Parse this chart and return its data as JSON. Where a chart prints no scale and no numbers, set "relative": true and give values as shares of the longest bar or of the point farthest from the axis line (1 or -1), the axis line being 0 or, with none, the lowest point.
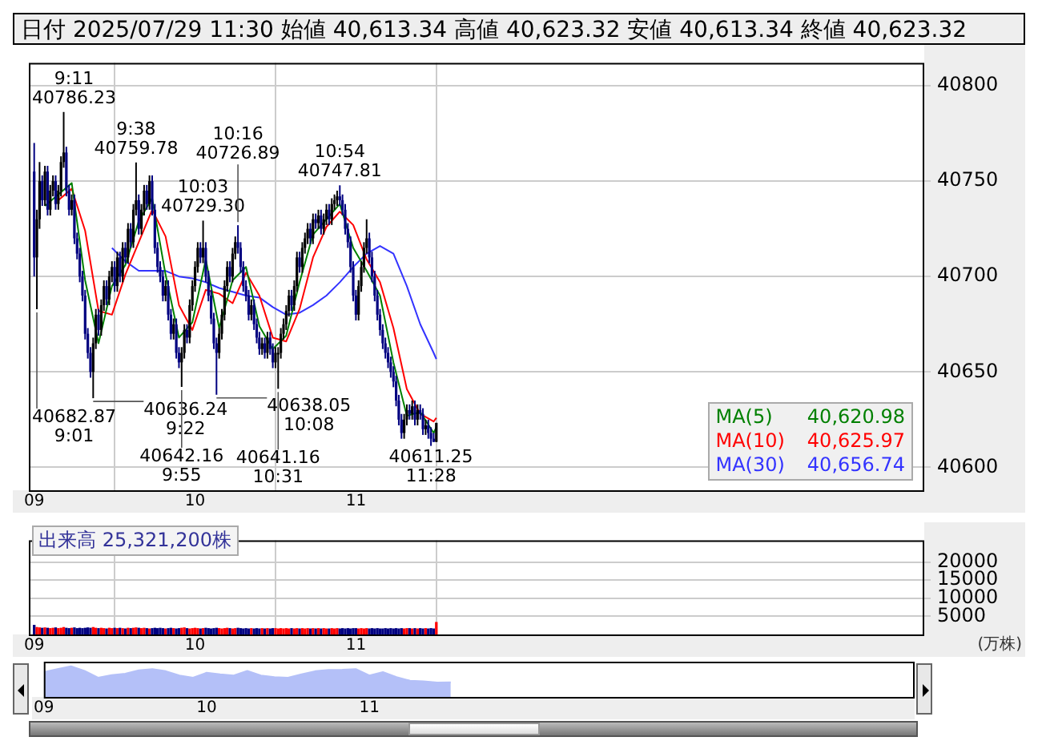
{
  "chart_data": [
    {
      "type": "candlestick",
      "title": "日付 2025/07/29 11:30 始値 40,613.34 高値 40,623.32 安値 40,613.34 終値 40,623.32",
      "x": [
        "2025-07-29T09:00",
        "2025-07-29T09:01",
        "2025-07-29T09:02",
        "2025-07-29T09:03",
        "2025-07-29T09:04",
        "2025-07-29T09:05",
        "2025-07-29T09:06",
        "2025-07-29T09:07",
        "2025-07-29T09:08",
        "2025-07-29T09:09",
        "2025-07-29T09:10",
        "2025-07-29T09:11",
        "2025-07-29T09:12",
        "2025-07-29T09:13",
        "2025-07-29T09:14",
        "2025-07-29T09:15",
        "2025-07-29T09:16",
        "2025-07-29T09:17",
        "2025-07-29T09:18",
        "2025-07-29T09:19",
        "2025-07-29T09:20",
        "2025-07-29T09:21",
        "2025-07-29T09:22",
        "2025-07-29T09:23",
        "2025-07-29T09:24",
        "2025-07-29T09:25",
        "2025-07-29T09:26",
        "2025-07-29T09:27",
        "2025-07-29T09:28",
        "2025-07-29T09:29",
        "2025-07-29T09:30",
        "2025-07-29T09:31",
        "2025-07-29T09:32",
        "2025-07-29T09:33",
        "2025-07-29T09:34",
        "2025-07-29T09:35",
        "2025-07-29T09:36",
        "2025-07-29T09:37",
        "2025-07-29T09:38",
        "2025-07-29T09:39",
        "2025-07-29T09:40",
        "2025-07-29T09:41",
        "2025-07-29T09:42",
        "2025-07-29T09:43",
        "2025-07-29T09:44",
        "2025-07-29T09:45",
        "2025-07-29T09:46",
        "2025-07-29T09:47",
        "2025-07-29T09:48",
        "2025-07-29T09:49",
        "2025-07-29T09:50",
        "2025-07-29T09:51",
        "2025-07-29T09:52",
        "2025-07-29T09:53",
        "2025-07-29T09:54",
        "2025-07-29T09:55",
        "2025-07-29T09:56",
        "2025-07-29T09:57",
        "2025-07-29T09:58",
        "2025-07-29T09:59",
        "2025-07-29T10:00",
        "2025-07-29T10:01",
        "2025-07-29T10:02",
        "2025-07-29T10:03",
        "2025-07-29T10:04",
        "2025-07-29T10:05",
        "2025-07-29T10:06",
        "2025-07-29T10:07",
        "2025-07-29T10:08",
        "2025-07-29T10:09",
        "2025-07-29T10:10",
        "2025-07-29T10:11",
        "2025-07-29T10:12",
        "2025-07-29T10:13",
        "2025-07-29T10:14",
        "2025-07-29T10:15",
        "2025-07-29T10:16",
        "2025-07-29T10:17",
        "2025-07-29T10:18",
        "2025-07-29T10:19",
        "2025-07-29T10:20",
        "2025-07-29T10:21",
        "2025-07-29T10:22",
        "2025-07-29T10:23",
        "2025-07-29T10:24",
        "2025-07-29T10:25",
        "2025-07-29T10:26",
        "2025-07-29T10:27",
        "2025-07-29T10:28",
        "2025-07-29T10:29",
        "2025-07-29T10:30",
        "2025-07-29T10:31",
        "2025-07-29T10:32",
        "2025-07-29T10:33",
        "2025-07-29T10:34",
        "2025-07-29T10:35",
        "2025-07-29T10:36",
        "2025-07-29T10:37",
        "2025-07-29T10:38",
        "2025-07-29T10:39",
        "2025-07-29T10:40",
        "2025-07-29T10:41",
        "2025-07-29T10:42",
        "2025-07-29T10:43",
        "2025-07-29T10:44",
        "2025-07-29T10:45",
        "2025-07-29T10:46",
        "2025-07-29T10:47",
        "2025-07-29T10:48",
        "2025-07-29T10:49",
        "2025-07-29T10:50",
        "2025-07-29T10:51",
        "2025-07-29T10:52",
        "2025-07-29T10:53",
        "2025-07-29T10:54",
        "2025-07-29T10:55",
        "2025-07-29T10:56",
        "2025-07-29T10:57",
        "2025-07-29T10:58",
        "2025-07-29T10:59",
        "2025-07-29T11:00",
        "2025-07-29T11:01",
        "2025-07-29T11:02",
        "2025-07-29T11:03",
        "2025-07-29T11:04",
        "2025-07-29T11:05",
        "2025-07-29T11:06",
        "2025-07-29T11:07",
        "2025-07-29T11:08",
        "2025-07-29T11:09",
        "2025-07-29T11:10",
        "2025-07-29T11:11",
        "2025-07-29T11:12",
        "2025-07-29T11:13",
        "2025-07-29T11:14",
        "2025-07-29T11:15",
        "2025-07-29T11:16",
        "2025-07-29T11:17",
        "2025-07-29T11:18",
        "2025-07-29T11:19",
        "2025-07-29T11:20",
        "2025-07-29T11:21",
        "2025-07-29T11:22",
        "2025-07-29T11:23",
        "2025-07-29T11:24",
        "2025-07-29T11:25",
        "2025-07-29T11:26",
        "2025-07-29T11:27",
        "2025-07-29T11:28",
        "2025-07-29T11:29",
        "2025-07-29T11:30"
      ],
      "ohlc": [
        [
          40755,
          40770,
          40700,
          40710
        ],
        [
          40710,
          40735,
          40682.87,
          40730
        ],
        [
          40730,
          40760,
          40725,
          40750
        ],
        [
          40750,
          40753,
          40737,
          40740
        ],
        [
          40740,
          40758,
          40737,
          40755
        ],
        [
          40755,
          40758,
          40732,
          40735
        ],
        [
          40735,
          40748,
          40732,
          40745
        ],
        [
          40745,
          40753,
          40742,
          40750
        ],
        [
          40750,
          40753,
          40735,
          40738
        ],
        [
          40738,
          40748,
          40735,
          40745
        ],
        [
          40745,
          40763,
          40742,
          40760
        ],
        [
          40760,
          40786.23,
          40757,
          40765
        ],
        [
          40765,
          40768,
          40742,
          40745
        ],
        [
          40745,
          40748,
          40732,
          40735
        ],
        [
          40735,
          40743,
          40732,
          40740
        ],
        [
          40740,
          40743,
          40717,
          40720
        ],
        [
          40720,
          40723,
          40709,
          40712
        ],
        [
          40712,
          40715,
          40697,
          40700
        ],
        [
          40700,
          40703,
          40687,
          40690
        ],
        [
          40690,
          40693,
          40667,
          40670
        ],
        [
          40670,
          40673,
          40657,
          40660
        ],
        [
          40660,
          40663,
          40647,
          40650
        ],
        [
          40650,
          40668,
          40636.24,
          40665
        ],
        [
          40665,
          40683,
          40662,
          40680
        ],
        [
          40680,
          40683,
          40669,
          40672
        ],
        [
          40672,
          40688,
          40669,
          40685
        ],
        [
          40685,
          40698,
          40682,
          40695
        ],
        [
          40695,
          40698,
          40685,
          40688
        ],
        [
          40688,
          40703,
          40685,
          40700
        ],
        [
          40700,
          40708,
          40697,
          40705
        ],
        [
          40705,
          40708,
          40692,
          40695
        ],
        [
          40695,
          40713,
          40692,
          40710
        ],
        [
          40710,
          40713,
          40697,
          40700
        ],
        [
          40700,
          40718,
          40697,
          40715
        ],
        [
          40715,
          40718,
          40707,
          40710
        ],
        [
          40710,
          40728,
          40707,
          40725
        ],
        [
          40725,
          40728,
          40715,
          40718
        ],
        [
          40718,
          40738,
          40715,
          40735
        ],
        [
          40735,
          40759.78,
          40732,
          40740
        ],
        [
          40740,
          40743,
          40722,
          40725
        ],
        [
          40725,
          40738,
          40722,
          40735
        ],
        [
          40735,
          40748,
          40732,
          40745
        ],
        [
          40745,
          40748,
          40735,
          40738
        ],
        [
          40738,
          40753,
          40735,
          40750
        ],
        [
          40750,
          40753,
          40732,
          40735
        ],
        [
          40735,
          40738,
          40712,
          40715
        ],
        [
          40715,
          40718,
          40702,
          40705
        ],
        [
          40705,
          40708,
          40697,
          40700
        ],
        [
          40700,
          40703,
          40687,
          40690
        ],
        [
          40690,
          40698,
          40687,
          40695
        ],
        [
          40695,
          40698,
          40677,
          40680
        ],
        [
          40680,
          40683,
          40667,
          40670
        ],
        [
          40670,
          40678,
          40667,
          40675
        ],
        [
          40675,
          40678,
          40657,
          40660
        ],
        [
          40660,
          40663,
          40652,
          40655
        ],
        [
          40655,
          40663,
          40642.16,
          40660
        ],
        [
          40660,
          40675,
          40657,
          40672
        ],
        [
          40672,
          40675,
          40665,
          40668
        ],
        [
          40668,
          40688,
          40665,
          40685
        ],
        [
          40685,
          40698,
          40682,
          40695
        ],
        [
          40695,
          40708,
          40692,
          40705
        ],
        [
          40705,
          40718,
          40702,
          40715
        ],
        [
          40715,
          40718,
          40707,
          40710
        ],
        [
          40710,
          40729.3,
          40707,
          40715
        ],
        [
          40715,
          40718,
          40697,
          40700
        ],
        [
          40700,
          40703,
          40687,
          40690
        ],
        [
          40690,
          40693,
          40675,
          40678
        ],
        [
          40678,
          40681,
          40662,
          40665
        ],
        [
          40665,
          40668,
          40638.05,
          40660
        ],
        [
          40660,
          40673,
          40657,
          40670
        ],
        [
          40670,
          40683,
          40667,
          40680
        ],
        [
          40680,
          40698,
          40677,
          40695
        ],
        [
          40695,
          40708,
          40692,
          40705
        ],
        [
          40705,
          40708,
          40697,
          40700
        ],
        [
          40700,
          40715,
          40697,
          40712
        ],
        [
          40712,
          40721,
          40709,
          40718
        ],
        [
          40718,
          40726.89,
          40712,
          40715
        ],
        [
          40715,
          40718,
          40702,
          40705
        ],
        [
          40705,
          40708,
          40692,
          40695
        ],
        [
          40695,
          40698,
          40687,
          40690
        ],
        [
          40690,
          40693,
          40677,
          40680
        ],
        [
          40680,
          40688,
          40677,
          40685
        ],
        [
          40685,
          40688,
          40672,
          40675
        ],
        [
          40675,
          40678,
          40665,
          40668
        ],
        [
          40668,
          40671,
          40659,
          40662
        ],
        [
          40662,
          40668,
          40659,
          40665
        ],
        [
          40665,
          40668,
          40657,
          40660
        ],
        [
          40660,
          40671,
          40657,
          40668
        ],
        [
          40668,
          40671,
          40659,
          40662
        ],
        [
          40662,
          40665,
          40652,
          40655
        ],
        [
          40655,
          40663,
          40652,
          40660
        ],
        [
          40660,
          40663,
          40641.16,
          40660
        ],
        [
          40660,
          40673,
          40657,
          40670
        ],
        [
          40670,
          40678,
          40667,
          40675
        ],
        [
          40675,
          40685,
          40672,
          40682
        ],
        [
          40682,
          40693,
          40679,
          40690
        ],
        [
          40690,
          40693,
          40682,
          40685
        ],
        [
          40685,
          40698,
          40682,
          40695
        ],
        [
          40695,
          40713,
          40692,
          40710
        ],
        [
          40710,
          40713,
          40702,
          40705
        ],
        [
          40705,
          40718,
          40702,
          40715
        ],
        [
          40715,
          40723,
          40712,
          40720
        ],
        [
          40720,
          40728,
          40717,
          40725
        ],
        [
          40725,
          40728,
          40717,
          40720
        ],
        [
          40720,
          40733,
          40717,
          40730
        ],
        [
          40730,
          40733,
          40725,
          40728
        ],
        [
          40728,
          40735,
          40725,
          40732
        ],
        [
          40732,
          40735,
          40722,
          40725
        ],
        [
          40725,
          40733,
          40722,
          40730
        ],
        [
          40730,
          40738,
          40727,
          40735
        ],
        [
          40735,
          40738,
          40727,
          40730
        ],
        [
          40730,
          40741,
          40727,
          40738
        ],
        [
          40738,
          40743,
          40735,
          40740
        ],
        [
          40740,
          40745,
          40737,
          40742
        ],
        [
          40742,
          40747.81,
          40737,
          40740
        ],
        [
          40740,
          40743,
          40732,
          40735
        ],
        [
          40735,
          40738,
          40722,
          40725
        ],
        [
          40725,
          40728,
          40715,
          40718
        ],
        [
          40718,
          40721,
          40702,
          40705
        ],
        [
          40705,
          40708,
          40687,
          40690
        ],
        [
          40690,
          40693,
          40677,
          40680
        ],
        [
          40680,
          40698,
          40677,
          40695
        ],
        [
          40695,
          40708,
          40692,
          40705
        ],
        [
          40705,
          40718,
          40702,
          40715
        ],
        [
          40715,
          40730,
          40712,
          40720
        ],
        [
          40720,
          40723,
          40707,
          40710
        ],
        [
          40710,
          40713,
          40697,
          40700
        ],
        [
          40700,
          40703,
          40687,
          40690
        ],
        [
          40690,
          40693,
          40677,
          40680
        ],
        [
          40680,
          40683,
          40669,
          40672
        ],
        [
          40672,
          40675,
          40662,
          40665
        ],
        [
          40665,
          40668,
          40657,
          40660
        ],
        [
          40660,
          40663,
          40652,
          40655
        ],
        [
          40655,
          40658,
          40647,
          40650
        ],
        [
          40650,
          40653,
          40642,
          40645
        ],
        [
          40645,
          40648,
          40632,
          40635
        ],
        [
          40635,
          40638,
          40622,
          40625
        ],
        [
          40625,
          40628,
          40615,
          40618
        ],
        [
          40618,
          40628,
          40615,
          40625
        ],
        [
          40625,
          40633,
          40622,
          40630
        ],
        [
          40630,
          40633,
          40625,
          40628
        ],
        [
          40628,
          40635,
          40625,
          40632
        ],
        [
          40632,
          40635,
          40622,
          40625
        ],
        [
          40625,
          40633,
          40622,
          40630
        ],
        [
          40630,
          40633,
          40625,
          40628
        ],
        [
          40628,
          40631,
          40617,
          40620
        ],
        [
          40620,
          40625,
          40617,
          40622
        ],
        [
          40622,
          40625,
          40615,
          40618
        ],
        [
          40618,
          40621,
          40611.25,
          40615
        ],
        [
          40615,
          40618,
          40613.34,
          40613.34
        ],
        [
          40613.34,
          40623.32,
          40613.34,
          40623.32
        ]
      ],
      "colors": [
        "#000080",
        "#000000",
        "#000000",
        "#000080",
        "#000000",
        "#000080",
        "#000000",
        "#000000",
        "#000080",
        "#000000",
        "#000000",
        "#000000",
        "#000080",
        "#000080",
        "#000000",
        "#000080",
        "#000080",
        "#000080",
        "#000080",
        "#000080",
        "#000080",
        "#000080",
        "#000000",
        "#000000",
        "#000080",
        "#000000",
        "#000000",
        "#000080",
        "#000000",
        "#000000",
        "#000080",
        "#000000",
        "#000080",
        "#000000",
        "#000080",
        "#000000",
        "#000080",
        "#000000",
        "#000000",
        "#000080",
        "#000000",
        "#000000",
        "#000080",
        "#000000",
        "#000080",
        "#000080",
        "#000080",
        "#000080",
        "#000080",
        "#000000",
        "#000080",
        "#000080",
        "#000000",
        "#000080",
        "#000080",
        "#000000",
        "#000000",
        "#000080",
        "#000000",
        "#000000",
        "#000000",
        "#000000",
        "#000080",
        "#000000",
        "#000080",
        "#000080",
        "#000080",
        "#000080",
        "#000080",
        "#000000",
        "#000000",
        "#000000",
        "#000000",
        "#000080",
        "#000000",
        "#000000",
        "#000080",
        "#000080",
        "#000080",
        "#000080",
        "#000080",
        "#000000",
        "#000080",
        "#000080",
        "#000080",
        "#000000",
        "#000080",
        "#000000",
        "#000080",
        "#000080",
        "#000000",
        "#000000",
        "#000000",
        "#000000",
        "#000000",
        "#000000",
        "#000080",
        "#000000",
        "#000000",
        "#000080",
        "#000000",
        "#000000",
        "#000000",
        "#000080",
        "#000000",
        "#000080",
        "#000000",
        "#000080",
        "#000000",
        "#000000",
        "#000080",
        "#000000",
        "#000000",
        "#000000",
        "#000080",
        "#000080",
        "#000080",
        "#000080",
        "#000080",
        "#000080",
        "#000080",
        "#000000",
        "#000000",
        "#000000",
        "#000000",
        "#000080",
        "#000080",
        "#000080",
        "#000080",
        "#000080",
        "#000080",
        "#000080",
        "#000080",
        "#000080",
        "#000080",
        "#000080",
        "#000080",
        "#000080",
        "#000000",
        "#000000",
        "#000080",
        "#000000",
        "#000080",
        "#000000",
        "#000080",
        "#000080",
        "#000000",
        "#000080",
        "#000080",
        "#000080",
        "#000000"
      ],
      "series": [
        {
          "type": "line",
          "name": "MA(5)",
          "color": "#008000",
          "x": [
            "2025-07-29T09:04",
            "2025-07-29T09:09",
            "2025-07-29T09:14",
            "2025-07-29T09:19",
            "2025-07-29T09:24",
            "2025-07-29T09:29",
            "2025-07-29T09:34",
            "2025-07-29T09:39",
            "2025-07-29T09:44",
            "2025-07-29T09:49",
            "2025-07-29T09:54",
            "2025-07-29T09:59",
            "2025-07-29T10:04",
            "2025-07-29T10:09",
            "2025-07-29T10:14",
            "2025-07-29T10:19",
            "2025-07-29T10:24",
            "2025-07-29T10:29",
            "2025-07-29T10:34",
            "2025-07-29T10:39",
            "2025-07-29T10:44",
            "2025-07-29T10:49",
            "2025-07-29T10:54",
            "2025-07-29T10:59",
            "2025-07-29T11:04",
            "2025-07-29T11:09",
            "2025-07-29T11:14",
            "2025-07-29T11:19",
            "2025-07-29T11:24",
            "2025-07-29T11:29",
            "2025-07-29T11:30"
          ],
          "values": [
            40737,
            40743,
            40749,
            40698,
            40665,
            40695,
            40706,
            40729,
            40741,
            40701,
            40668,
            40676,
            40709,
            40673,
            40698,
            40705,
            40674,
            40662,
            40669,
            40697,
            40722,
            40730,
            40738,
            40715,
            40703,
            40690,
            40655,
            40627,
            40629,
            40618,
            40620.98
          ]
        },
        {
          "type": "line",
          "name": "MA(10)",
          "color": "#ff0000",
          "x": [
            "2025-07-29T09:09",
            "2025-07-29T09:14",
            "2025-07-29T09:19",
            "2025-07-29T09:24",
            "2025-07-29T09:29",
            "2025-07-29T09:34",
            "2025-07-29T09:39",
            "2025-07-29T09:44",
            "2025-07-29T09:49",
            "2025-07-29T09:54",
            "2025-07-29T09:59",
            "2025-07-29T10:04",
            "2025-07-29T10:09",
            "2025-07-29T10:14",
            "2025-07-29T10:19",
            "2025-07-29T10:24",
            "2025-07-29T10:29",
            "2025-07-29T10:34",
            "2025-07-29T10:39",
            "2025-07-29T10:44",
            "2025-07-29T10:49",
            "2025-07-29T10:54",
            "2025-07-29T10:59",
            "2025-07-29T11:04",
            "2025-07-29T11:09",
            "2025-07-29T11:14",
            "2025-07-29T11:19",
            "2025-07-29T11:24",
            "2025-07-29T11:29",
            "2025-07-29T11:30"
          ],
          "values": [
            40740,
            40746,
            40724,
            40682,
            40680,
            40701,
            40718,
            40735,
            40721,
            40685,
            40672,
            40693,
            40691,
            40686,
            40702,
            40690,
            40668,
            40666,
            40683,
            40710,
            40726,
            40734,
            40727,
            40709,
            40697,
            40673,
            40641,
            40628,
            40624,
            40625.97
          ]
        },
        {
          "type": "line",
          "name": "MA(30)",
          "color": "#3333ff",
          "x": [
            "2025-07-29T09:29",
            "2025-07-29T09:34",
            "2025-07-29T09:39",
            "2025-07-29T09:44",
            "2025-07-29T09:49",
            "2025-07-29T09:54",
            "2025-07-29T09:59",
            "2025-07-29T10:04",
            "2025-07-29T10:09",
            "2025-07-29T10:14",
            "2025-07-29T10:19",
            "2025-07-29T10:24",
            "2025-07-29T10:29",
            "2025-07-29T10:34",
            "2025-07-29T10:39",
            "2025-07-29T10:44",
            "2025-07-29T10:49",
            "2025-07-29T10:54",
            "2025-07-29T10:59",
            "2025-07-29T11:04",
            "2025-07-29T11:09",
            "2025-07-29T11:14",
            "2025-07-29T11:19",
            "2025-07-29T11:24",
            "2025-07-29T11:29",
            "2025-07-29T11:30"
          ],
          "values": [
            40715,
            40708,
            40703,
            40703,
            40703,
            40700,
            40699,
            40697,
            40694,
            40692,
            40690,
            40689,
            40684,
            40680,
            40681,
            40685,
            40690,
            40697,
            40705,
            40712,
            40716,
            40712,
            40695,
            40675,
            40660,
            40656.74
          ]
        }
      ],
      "xlim": [
        "2025-07-29T08:58",
        "2025-07-29T14:32"
      ],
      "xticks": [
        {
          "value": "2025-07-29T09:00",
          "label": "09"
        },
        {
          "value": "2025-07-29T10:00",
          "label": "10"
        },
        {
          "value": "2025-07-29T11:00",
          "label": "11"
        }
      ],
      "ylim": [
        40588,
        40812
      ],
      "yticks": [
        40600,
        40650,
        40700,
        40750,
        40800
      ],
      "grid": true,
      "legend": "bottom right",
      "annotations": [
        {
          "text": "9:11\n40786.23",
          "x": "2025-07-29T09:11",
          "y": 40786.23
        },
        {
          "text": "9:38\n40759.78",
          "x": "2025-07-29T09:38",
          "y": 40759.78
        },
        {
          "text": "10:03\n40729.30",
          "x": "2025-07-29T10:03",
          "y": 40729.3
        },
        {
          "text": "10:16\n40726.89",
          "x": "2025-07-29T10:16",
          "y": 40726.89
        },
        {
          "text": "10:54\n40747.81",
          "x": "2025-07-29T10:54",
          "y": 40747.81
        },
        {
          "text": "40682.87\n9:01",
          "x": "2025-07-29T09:01",
          "y": 40682.87
        },
        {
          "text": "40636.24\n9:22",
          "x": "2025-07-29T09:22",
          "y": 40636.24
        },
        {
          "text": "40642.16\n9:55",
          "x": "2025-07-29T09:55",
          "y": 40642.16
        },
        {
          "text": "40638.05\n10:08",
          "x": "2025-07-29T10:08",
          "y": 40638.05
        },
        {
          "text": "40641.16\n10:31",
          "x": "2025-07-29T10:31",
          "y": 40641.16
        },
        {
          "text": "40611.25\n11:28",
          "x": "2025-07-29T11:28",
          "y": 40611.25
        },
        "40,620.98",
        "40,625.97",
        "40,656.74"
      ]
    },
    {
      "type": "bar",
      "title": "出来高 25,321,200株",
      "ylabel": "(万株)",
      "x": [
        "2025-07-29T09:00",
        "2025-07-29T09:01",
        "2025-07-29T09:02",
        "2025-07-29T09:03",
        "2025-07-29T09:04",
        "2025-07-29T09:05",
        "2025-07-29T09:06",
        "2025-07-29T09:07",
        "2025-07-29T09:08",
        "2025-07-29T09:09",
        "2025-07-29T09:10",
        "2025-07-29T09:11",
        "2025-07-29T09:12",
        "2025-07-29T09:13",
        "2025-07-29T09:14",
        "2025-07-29T09:15",
        "2025-07-29T09:16",
        "2025-07-29T09:17",
        "2025-07-29T09:18",
        "2025-07-29T09:19",
        "2025-07-29T09:20",
        "2025-07-29T09:21",
        "2025-07-29T09:22",
        "2025-07-29T09:23",
        "2025-07-29T09:24",
        "2025-07-29T09:25",
        "2025-07-29T09:26",
        "2025-07-29T09:27",
        "2025-07-29T09:28",
        "2025-07-29T09:29",
        "2025-07-29T09:30",
        "2025-07-29T09:31",
        "2025-07-29T09:32",
        "2025-07-29T09:33",
        "2025-07-29T09:34",
        "2025-07-29T09:35",
        "2025-07-29T09:36",
        "2025-07-29T09:37",
        "2025-07-29T09:38",
        "2025-07-29T09:39",
        "2025-07-29T09:40",
        "2025-07-29T09:41",
        "2025-07-29T09:42",
        "2025-07-29T09:43",
        "2025-07-29T09:44",
        "2025-07-29T09:45",
        "2025-07-29T09:46",
        "2025-07-29T09:47",
        "2025-07-29T09:48",
        "2025-07-29T09:49",
        "2025-07-29T09:50",
        "2025-07-29T09:51",
        "2025-07-29T09:52",
        "2025-07-29T09:53",
        "2025-07-29T09:54",
        "2025-07-29T09:55",
        "2025-07-29T09:56",
        "2025-07-29T09:57",
        "2025-07-29T09:58",
        "2025-07-29T09:59",
        "2025-07-29T10:00",
        "2025-07-29T10:01",
        "2025-07-29T10:02",
        "2025-07-29T10:03",
        "2025-07-29T10:04",
        "2025-07-29T10:05",
        "2025-07-29T10:06",
        "2025-07-29T10:07",
        "2025-07-29T10:08",
        "2025-07-29T10:09",
        "2025-07-29T10:10",
        "2025-07-29T10:11",
        "2025-07-29T10:12",
        "2025-07-29T10:13",
        "2025-07-29T10:14",
        "2025-07-29T10:15",
        "2025-07-29T10:16",
        "2025-07-29T10:17",
        "2025-07-29T10:18",
        "2025-07-29T10:19",
        "2025-07-29T10:20",
        "2025-07-29T10:21",
        "2025-07-29T10:22",
        "2025-07-29T10:23",
        "2025-07-29T10:24",
        "2025-07-29T10:25",
        "2025-07-29T10:26",
        "2025-07-29T10:27",
        "2025-07-29T10:28",
        "2025-07-29T10:29",
        "2025-07-29T10:30",
        "2025-07-29T10:31",
        "2025-07-29T10:32",
        "2025-07-29T10:33",
        "2025-07-29T10:34",
        "2025-07-29T10:35",
        "2025-07-29T10:36",
        "2025-07-29T10:37",
        "2025-07-29T10:38",
        "2025-07-29T10:39",
        "2025-07-29T10:40",
        "2025-07-29T10:41",
        "2025-07-29T10:42",
        "2025-07-29T10:43",
        "2025-07-29T10:44",
        "2025-07-29T10:45",
        "2025-07-29T10:46",
        "2025-07-29T10:47",
        "2025-07-29T10:48",
        "2025-07-29T10:49",
        "2025-07-29T10:50",
        "2025-07-29T10:51",
        "2025-07-29T10:52",
        "2025-07-29T10:53",
        "2025-07-29T10:54",
        "2025-07-29T10:55",
        "2025-07-29T10:56",
        "2025-07-29T10:57",
        "2025-07-29T10:58",
        "2025-07-29T10:59",
        "2025-07-29T11:00",
        "2025-07-29T11:01",
        "2025-07-29T11:02",
        "2025-07-29T11:03",
        "2025-07-29T11:04",
        "2025-07-29T11:05",
        "2025-07-29T11:06",
        "2025-07-29T11:07",
        "2025-07-29T11:08",
        "2025-07-29T11:09",
        "2025-07-29T11:10",
        "2025-07-29T11:11",
        "2025-07-29T11:12",
        "2025-07-29T11:13",
        "2025-07-29T11:14",
        "2025-07-29T11:15",
        "2025-07-29T11:16",
        "2025-07-29T11:17",
        "2025-07-29T11:18",
        "2025-07-29T11:19",
        "2025-07-29T11:20",
        "2025-07-29T11:21",
        "2025-07-29T11:22",
        "2025-07-29T11:23",
        "2025-07-29T11:24",
        "2025-07-29T11:25",
        "2025-07-29T11:26",
        "2025-07-29T11:27",
        "2025-07-29T11:28",
        "2025-07-29T11:29",
        "2025-07-29T11:30"
      ],
      "values": [
        2500,
        1900,
        1800,
        1700,
        1800,
        1700,
        1600,
        1700,
        1800,
        1600,
        1700,
        1900,
        1700,
        1600,
        1700,
        1800,
        1600,
        1700,
        1600,
        1700,
        1800,
        1700,
        1900,
        1700,
        1600,
        1700,
        1600,
        1500,
        1700,
        1600,
        1700,
        1600,
        1700,
        1600,
        1500,
        1700,
        1600,
        1700,
        1800,
        1700,
        1600,
        1700,
        1600,
        1500,
        1600,
        1700,
        1600,
        1700,
        1600,
        1500,
        1600,
        1700,
        1600,
        1500,
        1600,
        1700,
        1800,
        1600,
        1500,
        1600,
        1700,
        1600,
        1500,
        1600,
        1700,
        1600,
        1500,
        1600,
        1700,
        1600,
        1500,
        1600,
        1700,
        1600,
        1500,
        1600,
        1700,
        1600,
        1500,
        1600,
        1500,
        1600,
        1500,
        1600,
        1500,
        1600,
        1500,
        1600,
        1500,
        1600,
        1600,
        1500,
        1600,
        1500,
        1600,
        1500,
        1600,
        1500,
        1600,
        1500,
        1600,
        1500,
        1600,
        1500,
        1600,
        1500,
        1600,
        1500,
        1600,
        1500,
        1500,
        1600,
        1500,
        1600,
        1500,
        1600,
        1500,
        1600,
        1500,
        1600,
        1600,
        1500,
        1600,
        1500,
        1600,
        1500,
        1600,
        1500,
        1600,
        1500,
        1500,
        1600,
        1500,
        1600,
        1500,
        1600,
        1500,
        1600,
        1500,
        1600,
        1600,
        1500,
        1600,
        1500,
        1600,
        1500,
        1600,
        1500,
        1600,
        1500,
        3300
      ],
      "colors": [
        "#000080",
        "#ff0000",
        "#ff0000",
        "#000080",
        "#ff0000",
        "#000080",
        "#ff0000",
        "#ff0000",
        "#000080",
        "#ff0000",
        "#ff0000",
        "#ff0000",
        "#000080",
        "#000080",
        "#ff0000",
        "#000080",
        "#000080",
        "#000080",
        "#000080",
        "#000080",
        "#000080",
        "#000080",
        "#ff0000",
        "#ff0000",
        "#000080",
        "#ff0000",
        "#ff0000",
        "#000080",
        "#ff0000",
        "#ff0000",
        "#000080",
        "#ff0000",
        "#000080",
        "#ff0000",
        "#000080",
        "#ff0000",
        "#000080",
        "#ff0000",
        "#ff0000",
        "#000080",
        "#ff0000",
        "#ff0000",
        "#000080",
        "#ff0000",
        "#000080",
        "#000080",
        "#000080",
        "#000080",
        "#000080",
        "#ff0000",
        "#000080",
        "#000080",
        "#ff0000",
        "#000080",
        "#000080",
        "#ff0000",
        "#ff0000",
        "#000080",
        "#ff0000",
        "#ff0000",
        "#ff0000",
        "#ff0000",
        "#000080",
        "#ff0000",
        "#000080",
        "#000080",
        "#000080",
        "#000080",
        "#000080",
        "#ff0000",
        "#ff0000",
        "#ff0000",
        "#ff0000",
        "#000080",
        "#ff0000",
        "#ff0000",
        "#000080",
        "#000080",
        "#000080",
        "#000080",
        "#000080",
        "#ff0000",
        "#000080",
        "#000080",
        "#000080",
        "#ff0000",
        "#000080",
        "#ff0000",
        "#000080",
        "#000080",
        "#ff0000",
        "#ff0000",
        "#ff0000",
        "#ff0000",
        "#ff0000",
        "#ff0000",
        "#000080",
        "#ff0000",
        "#ff0000",
        "#000080",
        "#ff0000",
        "#ff0000",
        "#ff0000",
        "#000080",
        "#ff0000",
        "#000080",
        "#ff0000",
        "#000080",
        "#ff0000",
        "#ff0000",
        "#000080",
        "#ff0000",
        "#ff0000",
        "#ff0000",
        "#000080",
        "#000080",
        "#000080",
        "#000080",
        "#000080",
        "#000080",
        "#000080",
        "#ff0000",
        "#ff0000",
        "#ff0000",
        "#ff0000",
        "#000080",
        "#000080",
        "#000080",
        "#000080",
        "#000080",
        "#000080",
        "#000080",
        "#000080",
        "#000080",
        "#000080",
        "#000080",
        "#000080",
        "#000080",
        "#ff0000",
        "#ff0000",
        "#000080",
        "#ff0000",
        "#000080",
        "#ff0000",
        "#000080",
        "#000080",
        "#ff0000",
        "#000080",
        "#000080",
        "#000080",
        "#ff0000"
      ],
      "xlim": [
        "2025-07-29T08:58",
        "2025-07-29T14:32"
      ],
      "xticks": [
        {
          "value": "2025-07-29T09:00",
          "label": "09"
        },
        {
          "value": "2025-07-29T10:00",
          "label": "10"
        },
        {
          "value": "2025-07-29T11:00",
          "label": "11"
        }
      ],
      "ylim": [
        0,
        26000
      ],
      "yticks": [
        5000,
        10000,
        15000,
        20000
      ],
      "grid": true
    },
    {
      "type": "area",
      "relative": true,
      "color": "#b4c0f8",
      "x": [
        "2025-07-29T09:00",
        "2025-07-29T09:05",
        "2025-07-29T09:10",
        "2025-07-29T09:15",
        "2025-07-29T09:20",
        "2025-07-29T09:25",
        "2025-07-29T09:30",
        "2025-07-29T09:35",
        "2025-07-29T09:40",
        "2025-07-29T09:45",
        "2025-07-29T09:50",
        "2025-07-29T09:55",
        "2025-07-29T10:00",
        "2025-07-29T10:05",
        "2025-07-29T10:10",
        "2025-07-29T10:15",
        "2025-07-29T10:20",
        "2025-07-29T10:25",
        "2025-07-29T10:30",
        "2025-07-29T10:35",
        "2025-07-29T10:40",
        "2025-07-29T10:45",
        "2025-07-29T10:50",
        "2025-07-29T10:55",
        "2025-07-29T11:00",
        "2025-07-29T11:05",
        "2025-07-29T11:10",
        "2025-07-29T11:15",
        "2025-07-29T11:20",
        "2025-07-29T11:25",
        "2025-07-29T11:30"
      ],
      "values": [
        0.81,
        0.91,
        1,
        0.85,
        0.63,
        0.71,
        0.76,
        0.87,
        0.91,
        0.84,
        0.7,
        0.63,
        0.79,
        0.74,
        0.7,
        0.85,
        0.7,
        0.65,
        0.63,
        0.74,
        0.84,
        0.88,
        0.89,
        0.91,
        0.7,
        0.81,
        0.65,
        0.53,
        0.51,
        0.47,
        0.48
      ],
      "xlim": [
        "2025-07-29T09:00",
        "2025-07-29T14:21"
      ],
      "xticks": [
        {
          "value": "2025-07-29T09:00",
          "label": "09"
        },
        {
          "value": "2025-07-29T10:00",
          "label": "10"
        },
        {
          "value": "2025-07-29T11:00",
          "label": "11"
        }
      ]
    }
  ]
}
